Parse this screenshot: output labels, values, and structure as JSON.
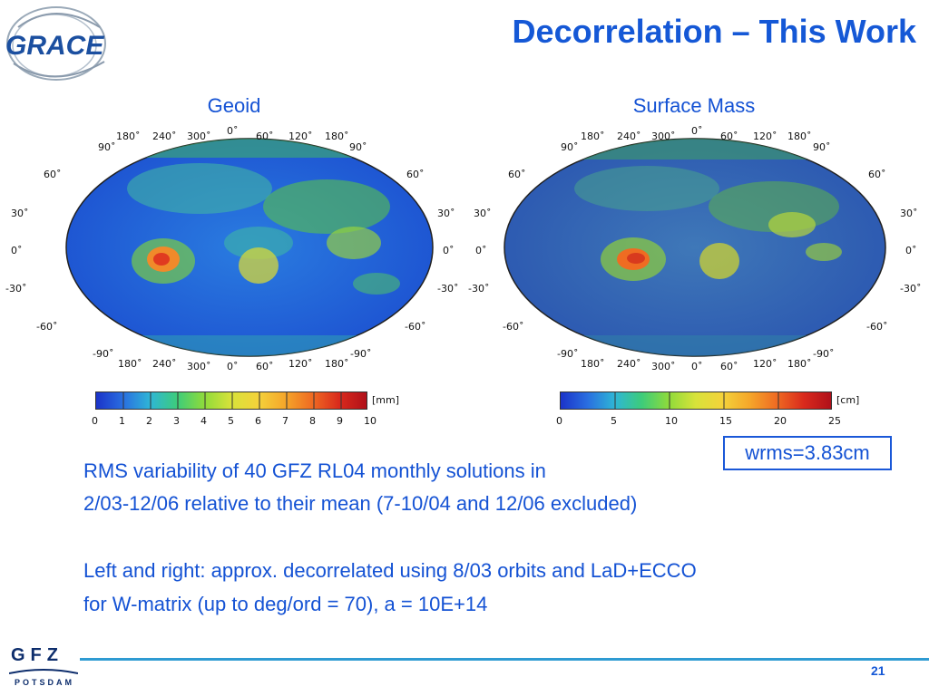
{
  "slide": {
    "title": "Decorrelation – This Work",
    "logo_text": "GRACE",
    "page_number": "21",
    "footer_logo_main": "GFZ",
    "footer_logo_sub": "Potsdam"
  },
  "maps": {
    "left": {
      "title": "Geoid",
      "unit": "[mm]",
      "colorbar_ticks": [
        "0",
        "1",
        "2",
        "3",
        "4",
        "5",
        "6",
        "7",
        "8",
        "9",
        "10"
      ]
    },
    "right": {
      "title": "Surface Mass",
      "unit": "[cm]",
      "colorbar_ticks": [
        "0",
        "5",
        "10",
        "15",
        "20",
        "25"
      ]
    },
    "lon_ticks_top": [
      "180˚",
      "240˚",
      "300˚",
      "0˚",
      "60˚",
      "120˚",
      "180˚"
    ],
    "lon_ticks_bottom": [
      "180˚",
      "240˚",
      "300˚",
      "0˚",
      "60˚",
      "120˚",
      "180˚"
    ],
    "lat_ticks": [
      "90˚",
      "60˚",
      "30˚",
      "0˚",
      "-30˚",
      "-60˚",
      "-90˚"
    ]
  },
  "annotation": {
    "wrms": "wrms=3.83cm"
  },
  "body": {
    "line1": "RMS variability of 40 GFZ RL04 monthly solutions in",
    "line2": "2/03-12/06 relative to their mean (7-10/04 and 12/06 excluded)",
    "line3": "Left and right: approx. decorrelated using 8/03 orbits and LaD+ECCO",
    "line4": "for W-matrix (up to deg/ord = 70), a = 10E+14"
  },
  "colors": {
    "title": "#1558d6",
    "text": "#1452d4",
    "footer_line": "#2f9bd2"
  }
}
